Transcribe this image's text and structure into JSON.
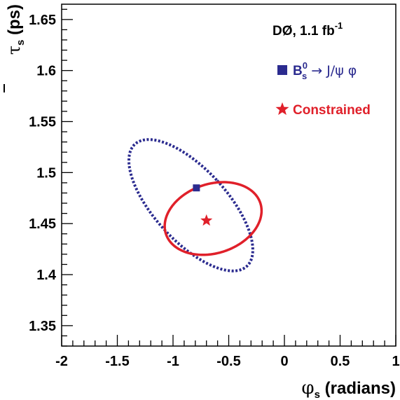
{
  "chart_data": {
    "type": "scatter",
    "xlim": [
      -2,
      1
    ],
    "ylim": [
      1.33,
      1.665
    ],
    "x_ticks": [
      "-2",
      "-1.5",
      "-1",
      "-0.5",
      "0",
      "0.5",
      "1"
    ],
    "x_tick_values": [
      -2,
      -1.5,
      -1,
      -0.5,
      0,
      0.5,
      1
    ],
    "y_ticks": [
      "1.35",
      "1.4",
      "1.45",
      "1.5",
      "1.55",
      "1.6",
      "1.65"
    ],
    "y_tick_values": [
      1.35,
      1.4,
      1.45,
      1.5,
      1.55,
      1.6,
      1.65
    ],
    "xlabel_symbol": "φ",
    "xlabel_sub": "s",
    "xlabel_rest": " (radians)",
    "ylabel_symbol": "τ",
    "ylabel_sub": "s",
    "ylabel_rest": " (ps)",
    "grid": false,
    "legend_placement": "top-right",
    "experiment_label": "DØ, 1.1 fb",
    "experiment_sup": "-1",
    "series": [
      {
        "name_main": "B",
        "name_sub": "s",
        "name_sup": "0",
        "name_rest": " → J/ψ φ",
        "marker": "square",
        "color": "#2b2b8f",
        "point": {
          "x": -0.79,
          "y": 1.485
        },
        "contour": {
          "style": "dotted",
          "center": {
            "x": -0.84,
            "y": 1.468
          },
          "tilt_deg": 43.5,
          "semi_axis_x": 0.32,
          "semi_axis_y": 0.082
        }
      },
      {
        "name_main": "Constrained",
        "marker": "star",
        "color": "#e0202a",
        "point": {
          "x": -0.7,
          "y": 1.453
        },
        "contour": {
          "style": "solid",
          "center": {
            "x": -0.64,
            "y": 1.455
          },
          "tilt_deg": 17,
          "semi_axis_x": 0.445,
          "semi_axis_y": 0.034
        }
      }
    ]
  }
}
